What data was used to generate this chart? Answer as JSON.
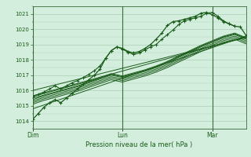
{
  "bg_color": "#d4eedd",
  "grid_color": "#aacfb8",
  "line_color": "#1a5c1a",
  "marker_color": "#1a5c1a",
  "axis_label_color": "#1a5c1a",
  "tick_label_color": "#1a5c1a",
  "vline_color": "#3a6b3a",
  "xlabel": "Pression niveau de la mer( hPa )",
  "ylim": [
    1013.5,
    1021.5
  ],
  "yticks": [
    1014,
    1015,
    1016,
    1017,
    1018,
    1019,
    1020,
    1021
  ],
  "xlim": [
    0,
    114
  ],
  "xtick_positions": [
    0,
    48,
    96
  ],
  "xtick_labels": [
    "Dim",
    "Lun",
    "Mar"
  ],
  "main_series_x": [
    0,
    3,
    6,
    9,
    12,
    15,
    18,
    21,
    24,
    27,
    30,
    33,
    36,
    39,
    42,
    45,
    48,
    51,
    54,
    57,
    60,
    63,
    66,
    69,
    72,
    75,
    78,
    81,
    84,
    87,
    90,
    93,
    96,
    99,
    102,
    105,
    108,
    111,
    114
  ],
  "main_series_y": [
    1014.1,
    1014.5,
    1014.9,
    1015.2,
    1015.4,
    1015.2,
    1015.5,
    1015.8,
    1016.1,
    1016.4,
    1016.7,
    1017.0,
    1017.4,
    1018.1,
    1018.6,
    1018.85,
    1018.75,
    1018.55,
    1018.45,
    1018.55,
    1018.75,
    1019.0,
    1019.35,
    1019.75,
    1020.25,
    1020.5,
    1020.55,
    1020.65,
    1020.75,
    1020.85,
    1021.05,
    1021.1,
    1020.95,
    1020.75,
    1020.5,
    1020.35,
    1020.2,
    1020.15,
    1019.6
  ],
  "ensemble_lines": [
    {
      "x": [
        0,
        6,
        12,
        18,
        24,
        30,
        36,
        42,
        48,
        54,
        60,
        66,
        72,
        78,
        84,
        90,
        96,
        102,
        108,
        114
      ],
      "y": [
        1015.6,
        1015.8,
        1016.0,
        1016.2,
        1016.4,
        1016.6,
        1016.85,
        1017.1,
        1016.95,
        1017.15,
        1017.35,
        1017.6,
        1017.9,
        1018.25,
        1018.6,
        1018.95,
        1019.25,
        1019.55,
        1019.75,
        1019.45
      ]
    },
    {
      "x": [
        0,
        6,
        12,
        18,
        24,
        30,
        36,
        42,
        48,
        54,
        60,
        66,
        72,
        78,
        84,
        90,
        96,
        102,
        108,
        114
      ],
      "y": [
        1015.5,
        1015.7,
        1015.9,
        1016.1,
        1016.3,
        1016.55,
        1016.8,
        1017.05,
        1016.9,
        1017.1,
        1017.3,
        1017.55,
        1017.85,
        1018.2,
        1018.55,
        1018.9,
        1019.2,
        1019.5,
        1019.7,
        1019.4
      ]
    },
    {
      "x": [
        0,
        6,
        12,
        18,
        24,
        30,
        36,
        42,
        48,
        54,
        60,
        66,
        72,
        78,
        84,
        90,
        96,
        102,
        108,
        114
      ],
      "y": [
        1015.4,
        1015.65,
        1015.85,
        1016.05,
        1016.25,
        1016.5,
        1016.75,
        1017.0,
        1016.85,
        1017.05,
        1017.25,
        1017.5,
        1017.8,
        1018.15,
        1018.5,
        1018.85,
        1019.15,
        1019.45,
        1019.65,
        1019.35
      ]
    },
    {
      "x": [
        0,
        6,
        12,
        18,
        24,
        30,
        36,
        42,
        48,
        54,
        60,
        66,
        72,
        78,
        84,
        90,
        96,
        102,
        108,
        114
      ],
      "y": [
        1015.3,
        1015.55,
        1015.75,
        1015.95,
        1016.15,
        1016.4,
        1016.65,
        1016.9,
        1016.75,
        1016.95,
        1017.15,
        1017.4,
        1017.7,
        1018.05,
        1018.4,
        1018.75,
        1019.05,
        1019.35,
        1019.55,
        1019.25
      ]
    },
    {
      "x": [
        0,
        6,
        12,
        18,
        24,
        30,
        36,
        42,
        48,
        54,
        60,
        66,
        72,
        78,
        84,
        90,
        96,
        102,
        108,
        114
      ],
      "y": [
        1015.2,
        1015.45,
        1015.65,
        1015.85,
        1016.05,
        1016.3,
        1016.55,
        1016.8,
        1016.65,
        1016.85,
        1017.05,
        1017.3,
        1017.6,
        1017.95,
        1018.3,
        1018.65,
        1018.95,
        1019.25,
        1019.45,
        1019.15
      ]
    },
    {
      "x": [
        0,
        6,
        12,
        18,
        24,
        30,
        36,
        42,
        48,
        54,
        60,
        66,
        72,
        78,
        84,
        90,
        96,
        102,
        108,
        114
      ],
      "y": [
        1015.1,
        1015.35,
        1015.55,
        1015.75,
        1015.95,
        1016.2,
        1016.45,
        1016.7,
        1016.55,
        1016.75,
        1016.95,
        1017.2,
        1017.5,
        1017.85,
        1018.2,
        1018.55,
        1018.85,
        1019.15,
        1019.35,
        1019.05
      ]
    }
  ],
  "linear_lines": [
    {
      "x": [
        0,
        114
      ],
      "y": [
        1014.8,
        1019.55
      ]
    },
    {
      "x": [
        0,
        114
      ],
      "y": [
        1015.65,
        1019.5
      ]
    },
    {
      "x": [
        0,
        114
      ],
      "y": [
        1016.0,
        1019.45
      ]
    }
  ],
  "second_marker_series_x": [
    0,
    3,
    6,
    9,
    12,
    15,
    18,
    21,
    24,
    27,
    30,
    33,
    36,
    39,
    42,
    45,
    48,
    51,
    54,
    57,
    60,
    63,
    66,
    69,
    72,
    75,
    78,
    81,
    84,
    87,
    90,
    93,
    96,
    99,
    102,
    105,
    108
  ],
  "second_marker_series_y": [
    1015.6,
    1015.75,
    1015.9,
    1016.1,
    1016.3,
    1016.1,
    1016.3,
    1016.5,
    1016.65,
    1016.85,
    1017.05,
    1017.3,
    1017.6,
    1018.1,
    1018.6,
    1018.85,
    1018.7,
    1018.5,
    1018.35,
    1018.45,
    1018.65,
    1018.85,
    1019.0,
    1019.35,
    1019.65,
    1019.95,
    1020.3,
    1020.55,
    1020.65,
    1020.75,
    1020.85,
    1021.05,
    1021.1,
    1020.85,
    1020.55,
    1020.35,
    1020.2
  ]
}
